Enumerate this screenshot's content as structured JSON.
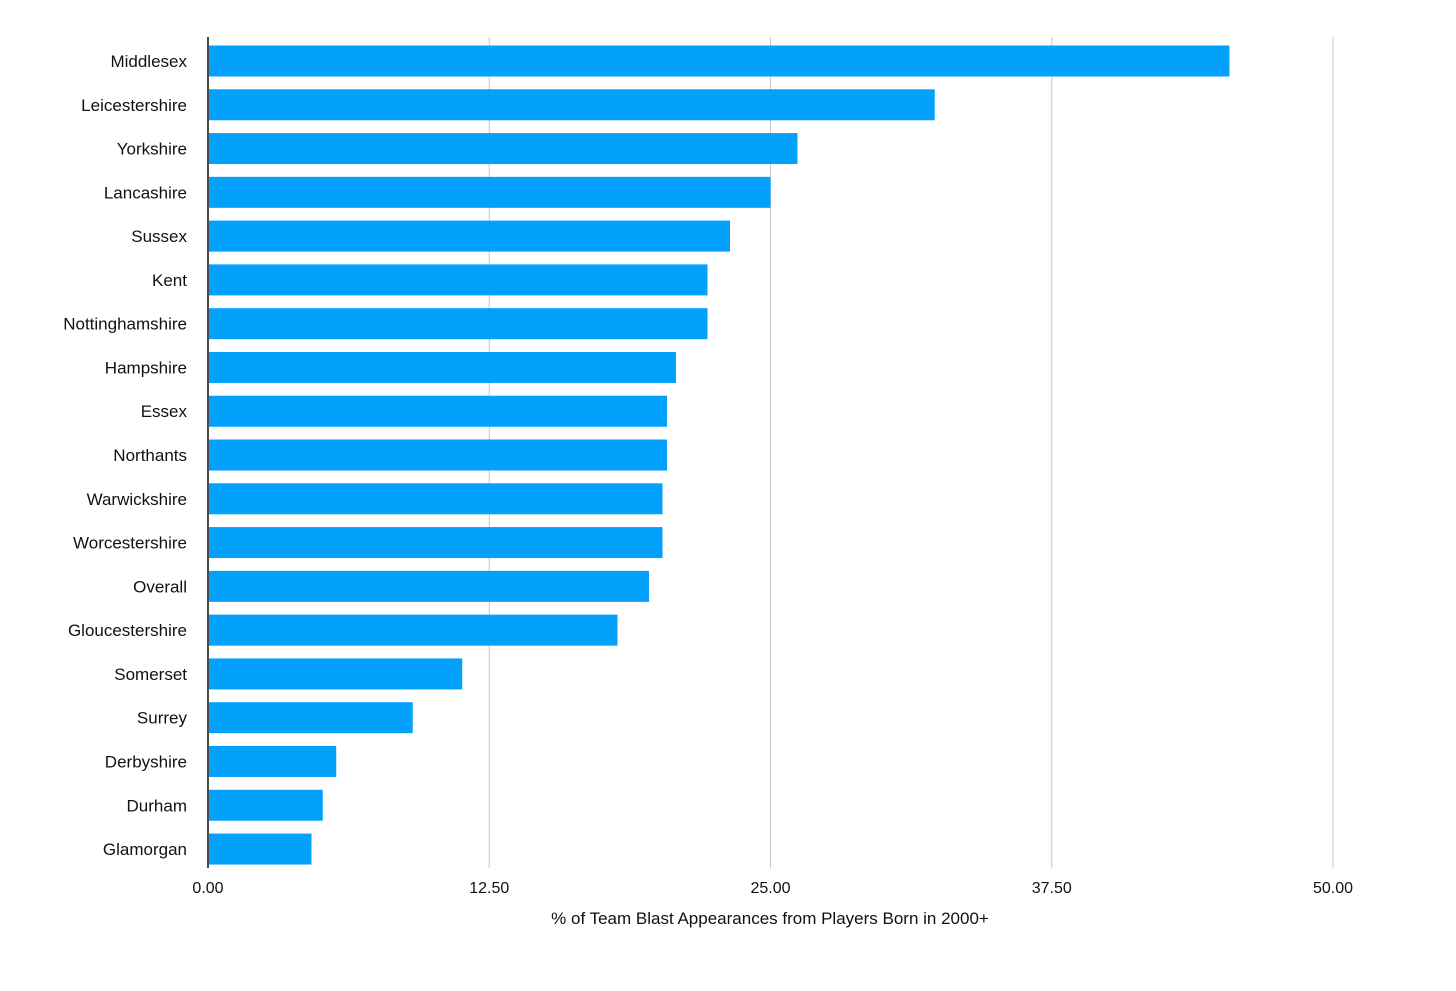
{
  "chart_data": {
    "type": "bar",
    "orientation": "horizontal",
    "title": "",
    "xlabel": "% of Team Blast Appearances from Players Born in 2000+",
    "ylabel": "",
    "xlim": [
      0,
      50
    ],
    "xticks": [
      0,
      12.5,
      25,
      37.5,
      50
    ],
    "xtick_labels": [
      "0.00",
      "12.50",
      "25.00",
      "37.50",
      "50.00"
    ],
    "grid": true,
    "legend": "none",
    "bar_color": "#03a1fc",
    "categories": [
      "Middlesex",
      "Leicestershire",
      "Yorkshire",
      "Lancashire",
      "Sussex",
      "Kent",
      "Nottinghamshire",
      "Hampshire",
      "Essex",
      "Northants",
      "Warwickshire",
      "Worcestershire",
      "Overall",
      "Gloucestershire",
      "Somerset",
      "Surrey",
      "Derbyshire",
      "Durham",
      "Glamorgan"
    ],
    "values": [
      45.4,
      32.3,
      26.2,
      25.0,
      23.2,
      22.2,
      22.2,
      20.8,
      20.4,
      20.4,
      20.2,
      20.2,
      19.6,
      18.2,
      11.3,
      9.1,
      5.7,
      5.1,
      4.6
    ]
  }
}
